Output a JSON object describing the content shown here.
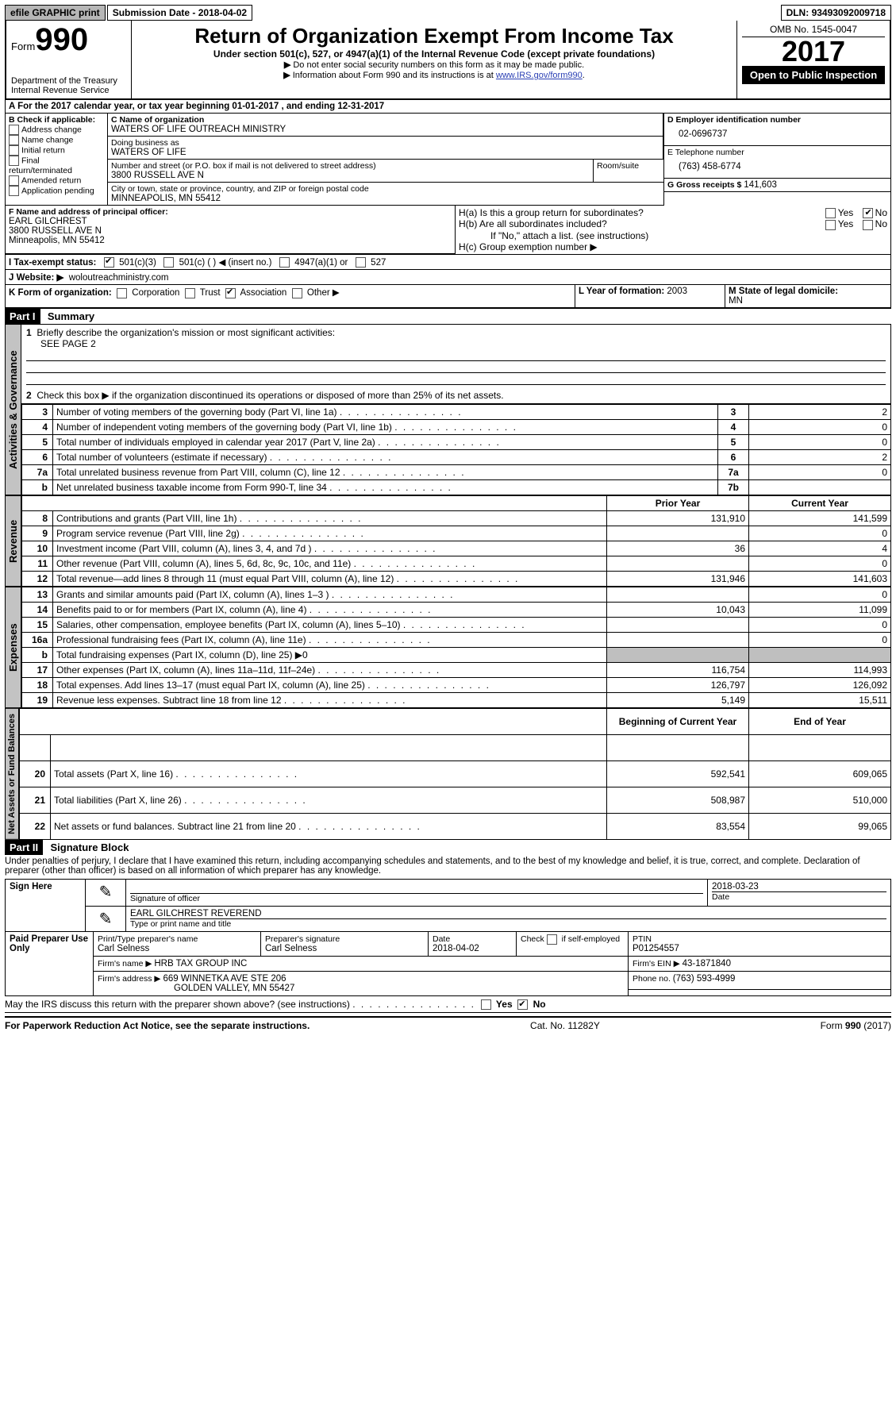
{
  "topbar": {
    "efile_label": "efile GRAPHIC print",
    "submission_label": "Submission Date - ",
    "submission_date": "2018-04-02",
    "dln_label": "DLN: ",
    "dln": "93493092009718"
  },
  "header": {
    "form_word": "Form",
    "form_no": "990",
    "dept1": "Department of the Treasury",
    "dept2": "Internal Revenue Service",
    "title": "Return of Organization Exempt From Income Tax",
    "subtitle": "Under section 501(c), 527, or 4947(a)(1) of the Internal Revenue Code (except private foundations)",
    "note1_arrow": "▶",
    "note1": "Do not enter social security numbers on this form as it may be made public.",
    "note2_arrow": "▶",
    "note2_pre": "Information about Form 990 and its instructions is at ",
    "note2_link": "www.IRS.gov/form990",
    "omb": "OMB No. 1545-0047",
    "year": "2017",
    "open": "Open to Public Inspection"
  },
  "A": {
    "line": "A  For the 2017 calendar year, or tax year beginning 01-01-2017   , and ending 12-31-2017"
  },
  "B": {
    "label": "B Check if applicable:",
    "opts": [
      "Address change",
      "Name change",
      "Initial return",
      "Final return/terminated",
      "Amended return",
      "Application pending"
    ]
  },
  "C": {
    "name_lbl": "C Name of organization",
    "name": "WATERS OF LIFE OUTREACH MINISTRY",
    "dba_lbl": "Doing business as",
    "dba": "WATERS OF LIFE",
    "street_lbl": "Number and street (or P.O. box if mail is not delivered to street address)",
    "room_lbl": "Room/suite",
    "street": "3800 RUSSELL AVE N",
    "city_lbl": "City or town, state or province, country, and ZIP or foreign postal code",
    "city": "MINNEAPOLIS, MN  55412"
  },
  "D": {
    "lbl": "D Employer identification number",
    "val": "02-0696737"
  },
  "E": {
    "lbl": "E Telephone number",
    "val": "(763) 458-6774"
  },
  "G": {
    "lbl": "G Gross receipts $ ",
    "val": "141,603"
  },
  "F": {
    "lbl": "F  Name and address of principal officer:",
    "name": "EARL GILCHREST",
    "addr1": "3800 RUSSELL AVE N",
    "addr2": "Minneapolis, MN  55412"
  },
  "H": {
    "a_lbl": "H(a)  Is this a group return for subordinates?",
    "b_lbl": "H(b)  Are all subordinates included?",
    "ifno": "If \"No,\" attach a list. (see instructions)",
    "c_lbl": "H(c)  Group exemption number ▶",
    "yes": "Yes",
    "no": "No"
  },
  "I": {
    "lbl": "I  Tax-exempt status:",
    "o1": "501(c)(3)",
    "o2": "501(c) (   ) ◀ (insert no.)",
    "o3": "4947(a)(1) or",
    "o4": "527"
  },
  "J": {
    "lbl": "J  Website: ▶",
    "val": "woloutreachministry.com"
  },
  "K": {
    "lbl": "K Form of organization:",
    "o1": "Corporation",
    "o2": "Trust",
    "o3": "Association",
    "o4": "Other ▶"
  },
  "L": {
    "lbl": "L Year of formation: ",
    "val": "2003"
  },
  "M": {
    "lbl": "M State of legal domicile:",
    "val": "MN"
  },
  "part1": {
    "hdr": "Part I",
    "title": "Summary",
    "q1": "Briefly describe the organization's mission or most significant activities:",
    "q1v": "SEE PAGE 2",
    "q2": "Check this box ▶        if the organization discontinued its operations or disposed of more than 25% of its net assets.",
    "sidelabels": {
      "ag": "Activities & Governance",
      "rev": "Revenue",
      "exp": "Expenses",
      "net": "Net Assets or Fund Balances"
    },
    "lines_ag": [
      {
        "n": "3",
        "d": "Number of voting members of the governing body (Part VI, line 1a)",
        "box": "3",
        "v": "2"
      },
      {
        "n": "4",
        "d": "Number of independent voting members of the governing body (Part VI, line 1b)",
        "box": "4",
        "v": "0"
      },
      {
        "n": "5",
        "d": "Total number of individuals employed in calendar year 2017 (Part V, line 2a)",
        "box": "5",
        "v": "0"
      },
      {
        "n": "6",
        "d": "Total number of volunteers (estimate if necessary)",
        "box": "6",
        "v": "2"
      },
      {
        "n": "7a",
        "d": "Total unrelated business revenue from Part VIII, column (C), line 12",
        "box": "7a",
        "v": "0"
      },
      {
        "n": "b",
        "d": "Net unrelated business taxable income from Form 990-T, line 34",
        "box": "7b",
        "v": ""
      }
    ],
    "col_prior": "Prior Year",
    "col_current": "Current Year",
    "col_boc": "Beginning of Current Year",
    "col_eoy": "End of Year",
    "lines_rev": [
      {
        "n": "8",
        "d": "Contributions and grants (Part VIII, line 1h)",
        "p": "131,910",
        "c": "141,599"
      },
      {
        "n": "9",
        "d": "Program service revenue (Part VIII, line 2g)",
        "p": "",
        "c": "0"
      },
      {
        "n": "10",
        "d": "Investment income (Part VIII, column (A), lines 3, 4, and 7d )",
        "p": "36",
        "c": "4"
      },
      {
        "n": "11",
        "d": "Other revenue (Part VIII, column (A), lines 5, 6d, 8c, 9c, 10c, and 11e)",
        "p": "",
        "c": "0"
      },
      {
        "n": "12",
        "d": "Total revenue—add lines 8 through 11 (must equal Part VIII, column (A), line 12)",
        "p": "131,946",
        "c": "141,603"
      }
    ],
    "lines_exp": [
      {
        "n": "13",
        "d": "Grants and similar amounts paid (Part IX, column (A), lines 1–3 )",
        "p": "",
        "c": "0"
      },
      {
        "n": "14",
        "d": "Benefits paid to or for members (Part IX, column (A), line 4)",
        "p": "10,043",
        "c": "11,099"
      },
      {
        "n": "15",
        "d": "Salaries, other compensation, employee benefits (Part IX, column (A), lines 5–10)",
        "p": "",
        "c": "0"
      },
      {
        "n": "16a",
        "d": "Professional fundraising fees (Part IX, column (A), line 11e)",
        "p": "",
        "c": "0"
      },
      {
        "n": "b",
        "d": "Total fundraising expenses (Part IX, column (D), line 25) ▶0",
        "p": "GREY",
        "c": "GREY"
      },
      {
        "n": "17",
        "d": "Other expenses (Part IX, column (A), lines 11a–11d, 11f–24e)",
        "p": "116,754",
        "c": "114,993"
      },
      {
        "n": "18",
        "d": "Total expenses. Add lines 13–17 (must equal Part IX, column (A), line 25)",
        "p": "126,797",
        "c": "126,092"
      },
      {
        "n": "19",
        "d": "Revenue less expenses. Subtract line 18 from line 12",
        "p": "5,149",
        "c": "15,511"
      }
    ],
    "lines_net": [
      {
        "n": "20",
        "d": "Total assets (Part X, line 16)",
        "p": "592,541",
        "c": "609,065"
      },
      {
        "n": "21",
        "d": "Total liabilities (Part X, line 26)",
        "p": "508,987",
        "c": "510,000"
      },
      {
        "n": "22",
        "d": "Net assets or fund balances. Subtract line 21 from line 20",
        "p": "83,554",
        "c": "99,065"
      }
    ]
  },
  "part2": {
    "hdr": "Part II",
    "title": "Signature Block",
    "decl": "Under penalties of perjury, I declare that I have examined this return, including accompanying schedules and statements, and to the best of my knowledge and belief, it is true, correct, and complete. Declaration of preparer (other than officer) is based on all information of which preparer has any knowledge.",
    "sign_here": "Sign Here",
    "sig_officer_lbl": "Signature of officer",
    "sig_date": "2018-03-23",
    "date_lbl": "Date",
    "typed_name": "EARL GILCHREST REVEREND",
    "typed_lbl": "Type or print name and title",
    "paid": "Paid Preparer Use Only",
    "prep_name_lbl": "Print/Type preparer's name",
    "prep_name": "Carl Selness",
    "prep_sig_lbl": "Preparer's signature",
    "prep_sig": "Carl Selness",
    "prep_date_lbl": "Date",
    "prep_date": "2018-04-02",
    "self_lbl": "Check        if self-employed",
    "ptin_lbl": "PTIN",
    "ptin": "P01254557",
    "firm_name_lbl": "Firm's name    ▶ ",
    "firm_name": "HRB TAX GROUP INC",
    "firm_ein_lbl": "Firm's EIN ▶ ",
    "firm_ein": "43-1871840",
    "firm_addr_lbl": "Firm's address ▶ ",
    "firm_addr1": "669 WINNETKA AVE STE 206",
    "firm_addr2": "GOLDEN VALLEY, MN  55427",
    "phone_lbl": "Phone no. ",
    "phone": "(763) 593-4999",
    "discuss": "May the IRS discuss this return with the preparer shown above? (see instructions)",
    "yes": "Yes",
    "no": "No"
  },
  "footer": {
    "left": "For Paperwork Reduction Act Notice, see the separate instructions.",
    "mid": "Cat. No. 11282Y",
    "right_pre": "Form ",
    "right_form": "990",
    "right_post": " (2017)"
  }
}
